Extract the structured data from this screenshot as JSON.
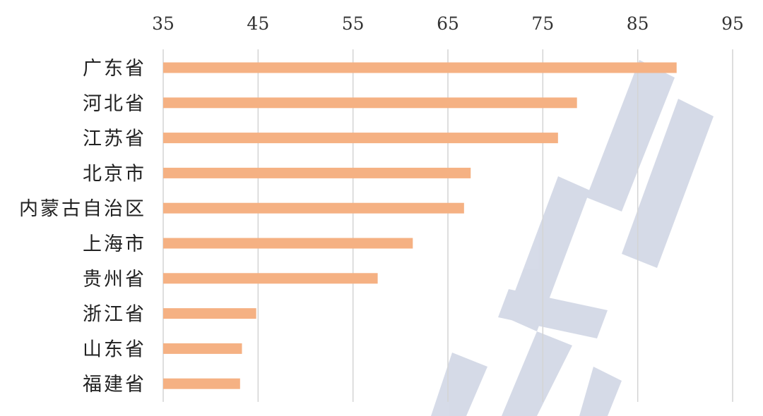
{
  "chart_data": {
    "type": "bar",
    "orientation": "horizontal",
    "title": "",
    "xlabel": "",
    "ylabel": "",
    "xlim": [
      35,
      95
    ],
    "x_ticks": [
      35,
      45,
      55,
      65,
      75,
      85,
      95
    ],
    "x_axis_position": "top",
    "grid": true,
    "legend": "none",
    "bar_color": "#F5B183",
    "categories": [
      "广东省",
      "河北省",
      "江苏省",
      "北京市",
      "内蒙古自治区",
      "上海市",
      "贵州省",
      "浙江省",
      "山东省",
      "福建省"
    ],
    "values": [
      89.1,
      78.6,
      76.6,
      67.4,
      66.7,
      61.3,
      57.6,
      44.8,
      43.3,
      43.1
    ]
  }
}
